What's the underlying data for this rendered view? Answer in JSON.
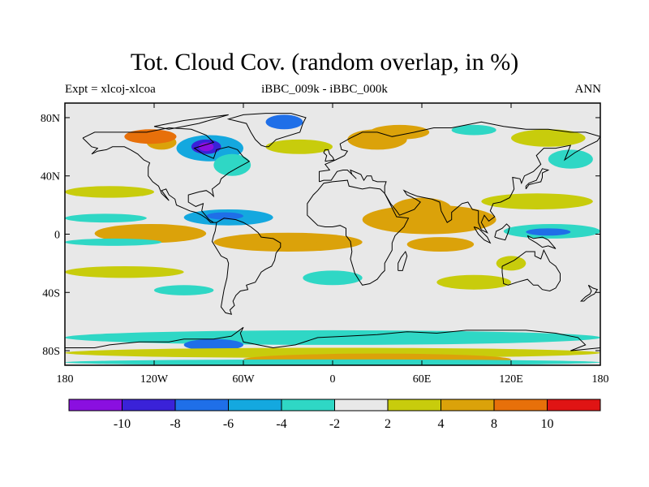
{
  "chart_data": {
    "type": "heatmap",
    "title": "Tot. Cloud Cov. (random overlap, in %)",
    "left_string": "Expt = xlcoj-xlcoa",
    "center_string": "iBBC_009k - iBBC_000k",
    "right_string": "ANN",
    "x_ticks": [
      {
        "value": -180,
        "label": "180"
      },
      {
        "value": -120,
        "label": "120W"
      },
      {
        "value": -60,
        "label": "60W"
      },
      {
        "value": 0,
        "label": "0"
      },
      {
        "value": 60,
        "label": "60E"
      },
      {
        "value": 120,
        "label": "120E"
      },
      {
        "value": 180,
        "label": "180"
      }
    ],
    "y_ticks": [
      {
        "value": 80,
        "label": "80N"
      },
      {
        "value": 40,
        "label": "40N"
      },
      {
        "value": 0,
        "label": "0"
      },
      {
        "value": -40,
        "label": "40S"
      },
      {
        "value": -80,
        "label": "80S"
      }
    ],
    "xlim": [
      -180,
      180
    ],
    "ylim": [
      -90,
      90
    ],
    "colorbar": {
      "colors": [
        "#8a0fe0",
        "#3a22d8",
        "#1f6fe8",
        "#14a8df",
        "#2fd7c5",
        "#e8e8e8",
        "#c8cc0c",
        "#dba20a",
        "#e7700a",
        "#e01414"
      ],
      "boundaries": [
        -12,
        -10,
        -8,
        -6,
        -4,
        -2,
        2,
        4,
        8,
        10,
        12
      ],
      "labels": [
        {
          "boundary_index": 1,
          "label": "-10"
        },
        {
          "boundary_index": 2,
          "label": "-8"
        },
        {
          "boundary_index": 3,
          "label": "-6"
        },
        {
          "boundary_index": 4,
          "label": "-4"
        },
        {
          "boundary_index": 5,
          "label": "-2"
        },
        {
          "boundary_index": 6,
          "label": "2"
        },
        {
          "boundary_index": 7,
          "label": "4"
        },
        {
          "boundary_index": 8,
          "label": "8"
        },
        {
          "boundary_index": 9,
          "label": "10"
        }
      ]
    },
    "regions": [
      {
        "name": "central-pacific-itcz",
        "lon": [
          -145,
          -95
        ],
        "lat": [
          -2,
          3
        ],
        "value": 9
      },
      {
        "name": "central-pacific-itcz-halo",
        "lon": [
          -160,
          -85
        ],
        "lat": [
          -6,
          7
        ],
        "value": 5
      },
      {
        "name": "south-atlantic-band",
        "lon": [
          -80,
          20
        ],
        "lat": [
          -12,
          1
        ],
        "value": 5
      },
      {
        "name": "south-atlantic-core",
        "lon": [
          -55,
          -10
        ],
        "lat": [
          -8,
          -2
        ],
        "value": 7
      },
      {
        "name": "africa-indian-ocean-band",
        "lon": [
          20,
          110
        ],
        "lat": [
          0,
          20
        ],
        "value": 4
      },
      {
        "name": "arabia-india",
        "lon": [
          40,
          80
        ],
        "lat": [
          10,
          25
        ],
        "value": 5
      },
      {
        "name": "indian-ocean-south",
        "lon": [
          50,
          95
        ],
        "lat": [
          -12,
          -2
        ],
        "value": 6
      },
      {
        "name": "east-asia-pacific-band",
        "lon": [
          100,
          175
        ],
        "lat": [
          17,
          28
        ],
        "value": 3
      },
      {
        "name": "west-pacific-negative",
        "lon": [
          115,
          180
        ],
        "lat": [
          -3,
          7
        ],
        "value": -4
      },
      {
        "name": "west-pacific-negative-core",
        "lon": [
          130,
          160
        ],
        "lat": [
          -1,
          4
        ],
        "value": -7
      },
      {
        "name": "east-pacific-negative",
        "lon": [
          -180,
          -115
        ],
        "lat": [
          -8,
          -3
        ],
        "value": -4
      },
      {
        "name": "east-pacific-north-negative",
        "lon": [
          -180,
          -125
        ],
        "lat": [
          8,
          14
        ],
        "value": -4
      },
      {
        "name": "caribbean-negative",
        "lon": [
          -100,
          -40
        ],
        "lat": [
          6,
          17
        ],
        "value": -5
      },
      {
        "name": "caribbean-core",
        "lon": [
          -85,
          -60
        ],
        "lat": [
          10,
          15
        ],
        "value": -8
      },
      {
        "name": "north-pacific-band",
        "lon": [
          -180,
          -120
        ],
        "lat": [
          25,
          33
        ],
        "value": 3
      },
      {
        "name": "south-pacific-band",
        "lon": [
          -180,
          -100
        ],
        "lat": [
          -30,
          -22
        ],
        "value": 3
      },
      {
        "name": "south-indian-band",
        "lon": [
          70,
          120
        ],
        "lat": [
          -38,
          -28
        ],
        "value": 3
      },
      {
        "name": "australia-west",
        "lon": [
          110,
          130
        ],
        "lat": [
          -25,
          -15
        ],
        "value": 3
      },
      {
        "name": "south-atlantic-negative",
        "lon": [
          -20,
          20
        ],
        "lat": [
          -35,
          -25
        ],
        "value": -3
      },
      {
        "name": "south-pacific-negative",
        "lon": [
          -120,
          -80
        ],
        "lat": [
          -42,
          -35
        ],
        "value": -3
      },
      {
        "name": "hudson-bay",
        "lon": [
          -105,
          -60
        ],
        "lat": [
          50,
          68
        ],
        "value": -5
      },
      {
        "name": "hudson-bay-core",
        "lon": [
          -95,
          -75
        ],
        "lat": [
          55,
          65
        ],
        "value": -10
      },
      {
        "name": "hudson-bay-center",
        "lon": [
          -90,
          -80
        ],
        "lat": [
          57,
          63
        ],
        "value": -11
      },
      {
        "name": "north-america-west",
        "lon": [
          -125,
          -105
        ],
        "lat": [
          58,
          68
        ],
        "value": 7
      },
      {
        "name": "alaska-canada-rim",
        "lon": [
          -140,
          -105
        ],
        "lat": [
          62,
          72
        ],
        "value": 9
      },
      {
        "name": "greenland-northeast",
        "lon": [
          -45,
          -20
        ],
        "lat": [
          72,
          82
        ],
        "value": -7
      },
      {
        "name": "east-canada",
        "lon": [
          -80,
          -55
        ],
        "lat": [
          40,
          55
        ],
        "value": -3
      },
      {
        "name": "europe-north",
        "lon": [
          10,
          50
        ],
        "lat": [
          58,
          72
        ],
        "value": 4
      },
      {
        "name": "north-atlantic",
        "lon": [
          -45,
          0
        ],
        "lat": [
          55,
          65
        ],
        "value": 3
      },
      {
        "name": "siberia-west",
        "lon": [
          25,
          65
        ],
        "lat": [
          65,
          75
        ],
        "value": 4
      },
      {
        "name": "siberia-east",
        "lon": [
          120,
          170
        ],
        "lat": [
          60,
          72
        ],
        "value": 3
      },
      {
        "name": "siberia-negative",
        "lon": [
          80,
          110
        ],
        "lat": [
          68,
          75
        ],
        "value": -3
      },
      {
        "name": "north-pacific-negative",
        "lon": [
          145,
          175
        ],
        "lat": [
          45,
          58
        ],
        "value": -3
      },
      {
        "name": "antarctic-coast",
        "lon": [
          -180,
          180
        ],
        "lat": [
          -76,
          -66
        ],
        "value": -3
      },
      {
        "name": "antarctic-west-core",
        "lon": [
          -100,
          -60
        ],
        "lat": [
          -80,
          -72
        ],
        "value": -7
      },
      {
        "name": "antarctic-interior",
        "lon": [
          -180,
          180
        ],
        "lat": [
          -85,
          -78
        ],
        "value": 3
      },
      {
        "name": "antarctic-east-positive",
        "lon": [
          -60,
          120
        ],
        "lat": [
          -90,
          -82
        ],
        "value": 5
      },
      {
        "name": "antarctic-rim-negative",
        "lon": [
          -180,
          180
        ],
        "lat": [
          -90,
          -86
        ],
        "value": -4
      }
    ]
  }
}
